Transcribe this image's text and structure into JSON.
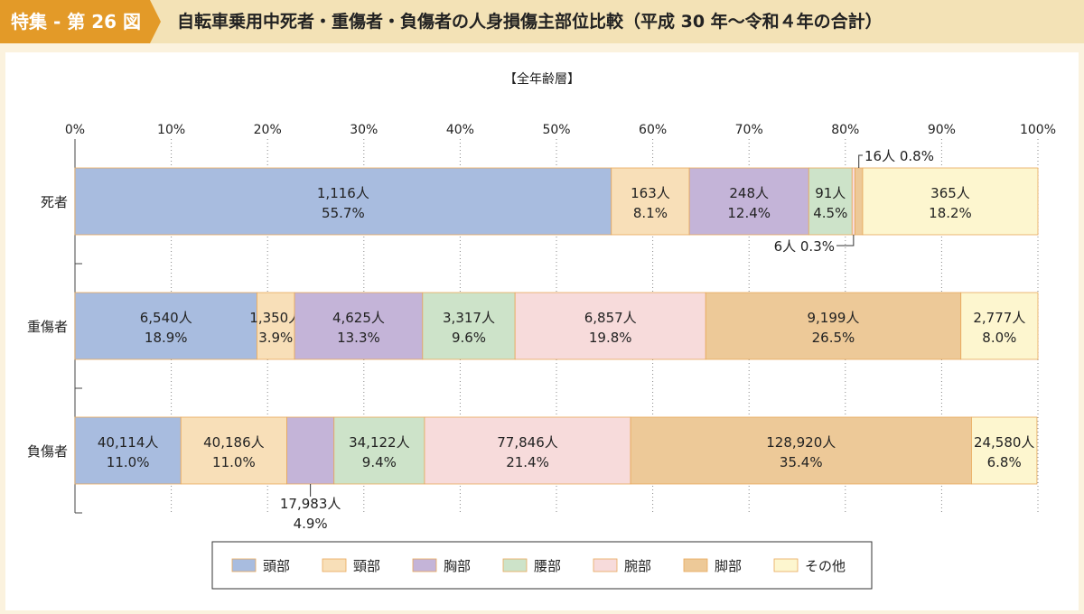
{
  "header": {
    "badge": "特集 - 第 26 図",
    "title": "自転車乗用中死者・重傷者・負傷者の人身損傷主部位比較（平成 30 年〜令和４年の合計）"
  },
  "chart_data": {
    "type": "bar",
    "orientation": "horizontal-stacked-100",
    "subtitle": "【全年齢層】",
    "x_ticks": [
      "0%",
      "10%",
      "20%",
      "30%",
      "40%",
      "50%",
      "60%",
      "70%",
      "80%",
      "90%",
      "100%"
    ],
    "xlim": [
      0,
      100
    ],
    "grid": "vertical dotted",
    "categories": [
      "死者",
      "重傷者",
      "負傷者"
    ],
    "series": [
      {
        "name": "頭部",
        "color": "#a8bcdf",
        "counts": [
          "1,116人",
          "6,540人",
          "40,114人"
        ],
        "percents": [
          "55.7%",
          "18.9%",
          "11.0%"
        ],
        "values": [
          55.7,
          18.9,
          11.0
        ]
      },
      {
        "name": "頸部",
        "color": "#f8dfb8",
        "counts": [
          "163人",
          "1,350人",
          "40,186人"
        ],
        "percents": [
          "8.1%",
          "3.9%",
          "11.0%"
        ],
        "values": [
          8.1,
          3.9,
          11.0
        ]
      },
      {
        "name": "胸部",
        "color": "#c4b4d8",
        "counts": [
          "248人",
          "4,625人",
          "17,983人"
        ],
        "percents": [
          "12.4%",
          "13.3%",
          "4.9%"
        ],
        "values": [
          12.4,
          13.3,
          4.9
        ]
      },
      {
        "name": "腰部",
        "color": "#cde3c9",
        "counts": [
          "91人",
          "3,317人",
          "34,122人"
        ],
        "percents": [
          "4.5%",
          "9.6%",
          "9.4%"
        ],
        "values": [
          4.5,
          9.6,
          9.4
        ]
      },
      {
        "name": "腕部",
        "color": "#f7dbdb",
        "counts": [
          "6人",
          "6,857人",
          "77,846人"
        ],
        "percents": [
          "0.3%",
          "19.8%",
          "21.4%"
        ],
        "values": [
          0.3,
          19.8,
          21.4
        ]
      },
      {
        "name": "脚部",
        "color": "#edc998",
        "counts": [
          "16人",
          "9,199人",
          "128,920人"
        ],
        "percents": [
          "0.8%",
          "26.5%",
          "35.4%"
        ],
        "values": [
          0.8,
          26.5,
          35.4
        ]
      },
      {
        "name": "その他",
        "color": "#fdf6cf",
        "counts": [
          "365人",
          "2,777人",
          "24,580人"
        ],
        "percents": [
          "18.2%",
          "8.0%",
          "6.8%"
        ],
        "values": [
          18.2,
          8.0,
          6.8
        ]
      }
    ],
    "callouts": [
      {
        "row": 0,
        "series": 5,
        "text": "16人 0.8%"
      },
      {
        "row": 0,
        "series": 4,
        "text": "6人 0.3%"
      },
      {
        "row": 2,
        "series": 2,
        "count": "17,983人",
        "percent": "4.9%"
      }
    ],
    "legend": [
      "頭部",
      "頸部",
      "胸部",
      "腰部",
      "腕部",
      "脚部",
      "その他"
    ],
    "legend_position": "bottom-center"
  }
}
